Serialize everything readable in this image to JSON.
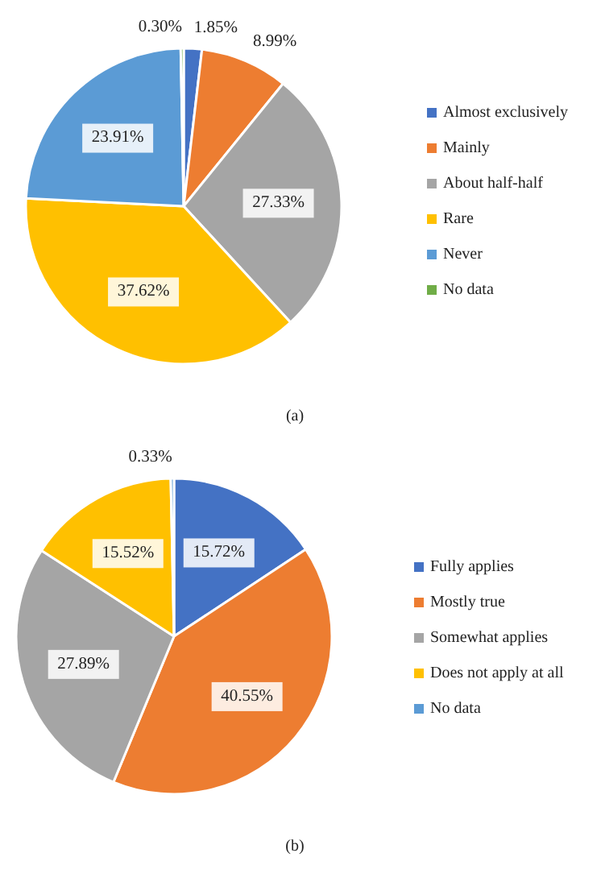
{
  "chart_data": [
    {
      "type": "pie",
      "title": "(a)",
      "categories": [
        "Almost exclusively",
        "Mainly",
        "About half-half",
        "Rare",
        "Never",
        "No data"
      ],
      "values": [
        1.85,
        8.99,
        27.33,
        37.62,
        23.91,
        0.3
      ],
      "value_labels": [
        "1.85%",
        "8.99%",
        "27.33%",
        "37.62%",
        "23.91%",
        "0.30%"
      ],
      "colors": [
        "#4472c4",
        "#ed7d31",
        "#a5a5a5",
        "#ffc000",
        "#5b9bd5",
        "#70ad47"
      ],
      "legend": "right"
    },
    {
      "type": "pie",
      "title": "(b)",
      "categories": [
        "Fully applies",
        "Mostly true",
        "Somewhat applies",
        "Does not apply at all",
        "No data"
      ],
      "values": [
        15.72,
        40.55,
        27.89,
        15.52,
        0.33
      ],
      "value_labels": [
        "15.72%",
        "40.55%",
        "27.89%",
        "15.52%",
        "0.33%"
      ],
      "colors": [
        "#4472c4",
        "#ed7d31",
        "#a5a5a5",
        "#ffc000",
        "#5b9bd5"
      ],
      "legend": "right"
    }
  ]
}
